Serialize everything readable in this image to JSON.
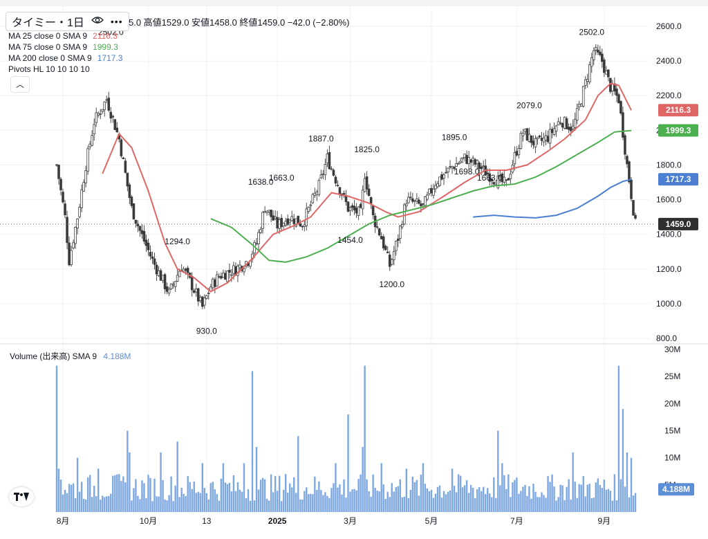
{
  "symbol": {
    "name": "タイミー・1日",
    "eye_icon": "eye-icon",
    "more_icon": "more-dots-icon"
  },
  "ohlc_text": "5.0  高値1529.0  安値1458.0  終値1459.0  −42.0 (−2.80%)",
  "legends": [
    {
      "label": "MA 25 close 0 SMA 9",
      "value": "2116.3",
      "color": "#e06666"
    },
    {
      "label": "MA 75 close 0 SMA 9",
      "value": "1999.3",
      "color": "#4caf50"
    },
    {
      "label": "MA 200 close 0 SMA 9",
      "value": "1717.3",
      "color": "#4a7fd1"
    },
    {
      "label": "Pivots HL 10 10 10 10",
      "value": "",
      "color": "#131722"
    }
  ],
  "collapse_icon": "chevron-up-icon",
  "volume_legend": {
    "label": "Volume (出来高)  SMA 9",
    "value": "4.188M",
    "color": "#5b8ed6"
  },
  "tv_logo": "tradingview-logo",
  "chart_data": {
    "type": "candlestick",
    "price_axis": {
      "min": 800,
      "max": 2600,
      "ticks": [
        "800.0",
        "1000.0",
        "1200.0",
        "1400.0",
        "1600.0",
        "1800.0",
        "2000.0",
        "2200.0",
        "2400.0",
        "2600.0"
      ]
    },
    "volume_axis": {
      "min": 0,
      "max": 30,
      "unit": "M",
      "ticks": [
        "5M",
        "10M",
        "15M",
        "20M",
        "25M",
        "30M"
      ]
    },
    "x_ticks": [
      {
        "label": "8月",
        "index": 3
      },
      {
        "label": "10月",
        "index": 44
      },
      {
        "label": "13",
        "index": 72
      },
      {
        "label": "2025",
        "index": 106
      },
      {
        "label": "3月",
        "index": 141
      },
      {
        "label": "5月",
        "index": 180
      },
      {
        "label": "7月",
        "index": 221
      },
      {
        "label": "9月",
        "index": 263
      }
    ],
    "n_bars": 279,
    "close_key": [
      [
        0,
        1800
      ],
      [
        4,
        1500
      ],
      [
        6,
        1250
      ],
      [
        10,
        1500
      ],
      [
        14,
        1800
      ],
      [
        18,
        2050
      ],
      [
        24,
        2180
      ],
      [
        30,
        1950
      ],
      [
        34,
        1680
      ],
      [
        36,
        1550
      ],
      [
        40,
        1420
      ],
      [
        46,
        1250
      ],
      [
        54,
        1060
      ],
      [
        60,
        1220
      ],
      [
        64,
        1130
      ],
      [
        70,
        980
      ],
      [
        74,
        1100
      ],
      [
        78,
        1160
      ],
      [
        86,
        1200
      ],
      [
        92,
        1250
      ],
      [
        96,
        1350
      ],
      [
        100,
        1560
      ],
      [
        106,
        1450
      ],
      [
        112,
        1500
      ],
      [
        118,
        1460
      ],
      [
        126,
        1680
      ],
      [
        130,
        1840
      ],
      [
        134,
        1720
      ],
      [
        140,
        1550
      ],
      [
        146,
        1520
      ],
      [
        148,
        1750
      ],
      [
        152,
        1500
      ],
      [
        156,
        1380
      ],
      [
        160,
        1220
      ],
      [
        164,
        1380
      ],
      [
        168,
        1600
      ],
      [
        176,
        1560
      ],
      [
        182,
        1700
      ],
      [
        190,
        1790
      ],
      [
        196,
        1840
      ],
      [
        202,
        1800
      ],
      [
        210,
        1720
      ],
      [
        216,
        1690
      ],
      [
        220,
        1850
      ],
      [
        224,
        1990
      ],
      [
        230,
        1920
      ],
      [
        236,
        1960
      ],
      [
        242,
        2060
      ],
      [
        248,
        2010
      ],
      [
        252,
        2180
      ],
      [
        258,
        2460
      ],
      [
        262,
        2400
      ],
      [
        266,
        2250
      ],
      [
        270,
        2180
      ],
      [
        274,
        1800
      ],
      [
        278,
        1459
      ]
    ],
    "series": [
      {
        "name": "MA 25",
        "last_value": 2116.3,
        "color": "#e06666",
        "points": [
          [
            22,
            1750
          ],
          [
            30,
            1980
          ],
          [
            36,
            1900
          ],
          [
            44,
            1650
          ],
          [
            52,
            1350
          ],
          [
            58,
            1200
          ],
          [
            66,
            1150
          ],
          [
            74,
            1070
          ],
          [
            82,
            1120
          ],
          [
            94,
            1260
          ],
          [
            104,
            1400
          ],
          [
            114,
            1450
          ],
          [
            122,
            1500
          ],
          [
            132,
            1640
          ],
          [
            140,
            1620
          ],
          [
            150,
            1580
          ],
          [
            158,
            1530
          ],
          [
            164,
            1500
          ],
          [
            174,
            1530
          ],
          [
            186,
            1620
          ],
          [
            196,
            1700
          ],
          [
            206,
            1770
          ],
          [
            216,
            1770
          ],
          [
            226,
            1800
          ],
          [
            236,
            1880
          ],
          [
            244,
            1950
          ],
          [
            254,
            2060
          ],
          [
            260,
            2200
          ],
          [
            266,
            2270
          ],
          [
            270,
            2260
          ],
          [
            276,
            2116
          ]
        ]
      },
      {
        "name": "MA 75",
        "last_value": 1999.3,
        "color": "#4caf50",
        "points": [
          [
            74,
            1490
          ],
          [
            84,
            1440
          ],
          [
            94,
            1340
          ],
          [
            102,
            1250
          ],
          [
            110,
            1240
          ],
          [
            120,
            1270
          ],
          [
            130,
            1320
          ],
          [
            140,
            1390
          ],
          [
            150,
            1460
          ],
          [
            160,
            1510
          ],
          [
            170,
            1540
          ],
          [
            180,
            1570
          ],
          [
            190,
            1610
          ],
          [
            200,
            1650
          ],
          [
            210,
            1680
          ],
          [
            220,
            1690
          ],
          [
            230,
            1730
          ],
          [
            240,
            1790
          ],
          [
            250,
            1860
          ],
          [
            260,
            1930
          ],
          [
            268,
            1990
          ],
          [
            276,
            1999
          ]
        ]
      },
      {
        "name": "MA 200",
        "last_value": 1717.3,
        "color": "#4a7fd1",
        "points": [
          [
            200,
            1500
          ],
          [
            210,
            1510
          ],
          [
            220,
            1500
          ],
          [
            230,
            1495
          ],
          [
            240,
            1510
          ],
          [
            250,
            1550
          ],
          [
            260,
            1620
          ],
          [
            266,
            1670
          ],
          [
            272,
            1705
          ],
          [
            276,
            1717
          ]
        ]
      }
    ],
    "pivots": [
      {
        "text": "2502.0",
        "index": 26,
        "price": 2502
      },
      {
        "text": "930.0",
        "index": 72,
        "price": 930
      },
      {
        "text": "1294.0",
        "index": 58,
        "price": 1294
      },
      {
        "text": "1638.0",
        "index": 98,
        "price": 1638
      },
      {
        "text": "1663.0",
        "index": 108,
        "price": 1663
      },
      {
        "text": "1887.0",
        "index": 127,
        "price": 1887
      },
      {
        "text": "1454.0",
        "index": 141,
        "price": 1454
      },
      {
        "text": "1825.0",
        "index": 149,
        "price": 1825
      },
      {
        "text": "1200.0",
        "index": 161,
        "price": 1200
      },
      {
        "text": "1895.0",
        "index": 191,
        "price": 1895
      },
      {
        "text": "1698.0",
        "index": 197,
        "price": 1698
      },
      {
        "text": "1663.0",
        "index": 208,
        "price": 1663
      },
      {
        "text": "2079.0",
        "index": 227,
        "price": 2079
      },
      {
        "text": "2502.0",
        "index": 257,
        "price": 2502
      }
    ],
    "price_labels": [
      {
        "text": "2116.3",
        "value": 2116.3,
        "color": "#e06666"
      },
      {
        "text": "1999.3",
        "value": 1999.3,
        "color": "#4caf50"
      },
      {
        "text": "1717.3",
        "value": 1717.3,
        "color": "#4a7fd1"
      },
      {
        "text": "1459.0",
        "value": 1459.0,
        "color": "#2f2f2f"
      }
    ],
    "volume_label": {
      "text": "4.188M",
      "value": 4.188,
      "color": "#5b8ed6"
    },
    "volume_key": [
      [
        0,
        27
      ],
      [
        1,
        8
      ],
      [
        2,
        6
      ],
      [
        10,
        10
      ],
      [
        20,
        8
      ],
      [
        30,
        7
      ],
      [
        34,
        15
      ],
      [
        35,
        11
      ],
      [
        50,
        11
      ],
      [
        58,
        13
      ],
      [
        70,
        9
      ],
      [
        80,
        9
      ],
      [
        90,
        9
      ],
      [
        94,
        26
      ],
      [
        96,
        12
      ],
      [
        110,
        7
      ],
      [
        116,
        14
      ],
      [
        134,
        9
      ],
      [
        140,
        18
      ],
      [
        147,
        12
      ],
      [
        148,
        27
      ],
      [
        156,
        9
      ],
      [
        168,
        8
      ],
      [
        176,
        9
      ],
      [
        190,
        8
      ],
      [
        212,
        15
      ],
      [
        214,
        9
      ],
      [
        248,
        11
      ],
      [
        270,
        27
      ],
      [
        272,
        19
      ],
      [
        274,
        11
      ],
      [
        276,
        10
      ],
      [
        278,
        3.5
      ]
    ],
    "grid": true
  }
}
